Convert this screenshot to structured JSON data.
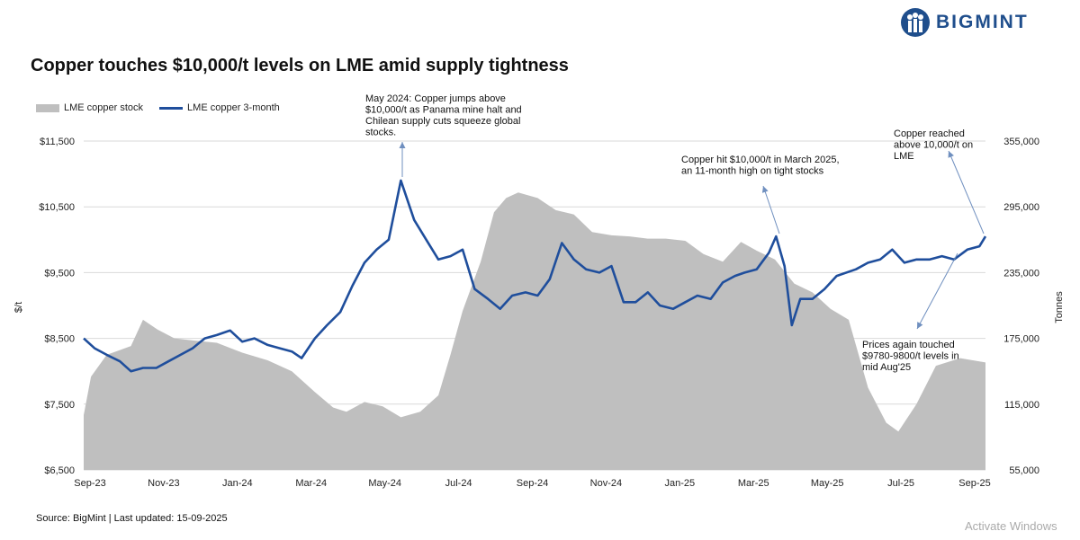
{
  "brand": {
    "name": "BIGMINT",
    "color": "#1f4e8c"
  },
  "title": "Copper touches $10,000/t levels on LME amid supply tightness",
  "source": "Source: BigMint | Last updated: 15-09-2025",
  "watermark": "Activate Windows",
  "chart_data": {
    "type": "line",
    "title": "Copper touches $10,000/t levels on LME amid supply tightness",
    "ylabel": "$/t",
    "y2label": "Tonnes",
    "ylim": [
      6500,
      11500
    ],
    "y2lim": [
      55000,
      355000
    ],
    "yticks": [
      "$11,500",
      "$10,500",
      "$9,500",
      "$8,500",
      "$7,500",
      "$6,500"
    ],
    "y2ticks": [
      "355,000",
      "295,000",
      "235,000",
      "175,000",
      "115,000",
      "55,000"
    ],
    "xticks": [
      "Sep-23",
      "Nov-23",
      "Jan-24",
      "Mar-24",
      "May-24",
      "Jul-24",
      "Sep-24",
      "Nov-24",
      "Jan-25",
      "Mar-25",
      "May-25",
      "Jul-25",
      "Sep-25"
    ],
    "legend_position": "top-left",
    "grid": true,
    "colors": {
      "price": "#1f4e9c",
      "stock": "#bfbfbf"
    },
    "series": [
      {
        "name": "LME copper stock",
        "type": "area",
        "axis": "right",
        "points": [
          [
            "2023-09-01",
            105000
          ],
          [
            "2023-09-07",
            140000
          ],
          [
            "2023-09-20",
            160000
          ],
          [
            "2023-10-10",
            168000
          ],
          [
            "2023-10-20",
            192000
          ],
          [
            "2023-11-01",
            183000
          ],
          [
            "2023-11-15",
            175000
          ],
          [
            "2023-12-01",
            173000
          ],
          [
            "2023-12-20",
            171000
          ],
          [
            "2024-01-10",
            162000
          ],
          [
            "2024-01-31",
            155000
          ],
          [
            "2024-02-20",
            145000
          ],
          [
            "2024-03-10",
            126000
          ],
          [
            "2024-03-25",
            112000
          ],
          [
            "2024-04-05",
            108000
          ],
          [
            "2024-04-20",
            117000
          ],
          [
            "2024-05-05",
            113000
          ],
          [
            "2024-05-20",
            103000
          ],
          [
            "2024-06-05",
            108000
          ],
          [
            "2024-06-20",
            123000
          ],
          [
            "2024-06-30",
            160000
          ],
          [
            "2024-07-10",
            200000
          ],
          [
            "2024-07-25",
            245000
          ],
          [
            "2024-08-05",
            290000
          ],
          [
            "2024-08-15",
            303000
          ],
          [
            "2024-08-25",
            308000
          ],
          [
            "2024-09-10",
            303000
          ],
          [
            "2024-09-25",
            292000
          ],
          [
            "2024-10-10",
            288000
          ],
          [
            "2024-10-25",
            272000
          ],
          [
            "2024-11-10",
            269000
          ],
          [
            "2024-11-25",
            268000
          ],
          [
            "2024-12-10",
            266000
          ],
          [
            "2024-12-25",
            266000
          ],
          [
            "2025-01-10",
            264000
          ],
          [
            "2025-01-25",
            252000
          ],
          [
            "2025-02-10",
            245000
          ],
          [
            "2025-02-25",
            263000
          ],
          [
            "2025-03-10",
            255000
          ],
          [
            "2025-03-25",
            247000
          ],
          [
            "2025-04-10",
            225000
          ],
          [
            "2025-04-25",
            217000
          ],
          [
            "2025-05-10",
            202000
          ],
          [
            "2025-05-25",
            192000
          ],
          [
            "2025-06-10",
            130000
          ],
          [
            "2025-06-25",
            98000
          ],
          [
            "2025-07-05",
            90000
          ],
          [
            "2025-07-20",
            115000
          ],
          [
            "2025-08-05",
            150000
          ],
          [
            "2025-08-25",
            157000
          ],
          [
            "2025-09-15",
            153000
          ]
        ]
      },
      {
        "name": "LME copper 3-month",
        "type": "line",
        "axis": "left",
        "points": [
          [
            "2023-09-01",
            8500
          ],
          [
            "2023-09-10",
            8350
          ],
          [
            "2023-09-20",
            8250
          ],
          [
            "2023-10-01",
            8150
          ],
          [
            "2023-10-10",
            8000
          ],
          [
            "2023-10-20",
            8050
          ],
          [
            "2023-10-31",
            8050
          ],
          [
            "2023-11-10",
            8150
          ],
          [
            "2023-11-20",
            8250
          ],
          [
            "2023-11-30",
            8350
          ],
          [
            "2023-12-10",
            8500
          ],
          [
            "2023-12-20",
            8550
          ],
          [
            "2023-12-31",
            8620
          ],
          [
            "2024-01-10",
            8450
          ],
          [
            "2024-01-20",
            8500
          ],
          [
            "2024-01-31",
            8400
          ],
          [
            "2024-02-10",
            8350
          ],
          [
            "2024-02-20",
            8300
          ],
          [
            "2024-02-28",
            8200
          ],
          [
            "2024-03-10",
            8500
          ],
          [
            "2024-03-20",
            8700
          ],
          [
            "2024-03-31",
            8900
          ],
          [
            "2024-04-10",
            9300
          ],
          [
            "2024-04-20",
            9650
          ],
          [
            "2024-04-30",
            9850
          ],
          [
            "2024-05-10",
            10000
          ],
          [
            "2024-05-20",
            10900
          ],
          [
            "2024-05-31",
            10300
          ],
          [
            "2024-06-10",
            10000
          ],
          [
            "2024-06-20",
            9700
          ],
          [
            "2024-06-30",
            9750
          ],
          [
            "2024-07-10",
            9850
          ],
          [
            "2024-07-20",
            9250
          ],
          [
            "2024-07-31",
            9100
          ],
          [
            "2024-08-10",
            8950
          ],
          [
            "2024-08-20",
            9150
          ],
          [
            "2024-08-31",
            9200
          ],
          [
            "2024-09-10",
            9150
          ],
          [
            "2024-09-20",
            9400
          ],
          [
            "2024-09-30",
            9950
          ],
          [
            "2024-10-10",
            9700
          ],
          [
            "2024-10-20",
            9550
          ],
          [
            "2024-10-31",
            9500
          ],
          [
            "2024-11-10",
            9600
          ],
          [
            "2024-11-20",
            9050
          ],
          [
            "2024-11-30",
            9050
          ],
          [
            "2024-12-10",
            9200
          ],
          [
            "2024-12-20",
            9000
          ],
          [
            "2024-12-31",
            8950
          ],
          [
            "2025-01-10",
            9050
          ],
          [
            "2025-01-20",
            9150
          ],
          [
            "2025-01-31",
            9100
          ],
          [
            "2025-02-10",
            9350
          ],
          [
            "2025-02-20",
            9450
          ],
          [
            "2025-02-28",
            9500
          ],
          [
            "2025-03-10",
            9550
          ],
          [
            "2025-03-20",
            9800
          ],
          [
            "2025-03-26",
            10050
          ],
          [
            "2025-04-02",
            9600
          ],
          [
            "2025-04-08",
            8700
          ],
          [
            "2025-04-15",
            9100
          ],
          [
            "2025-04-25",
            9100
          ],
          [
            "2025-05-05",
            9250
          ],
          [
            "2025-05-15",
            9450
          ],
          [
            "2025-05-31",
            9550
          ],
          [
            "2025-06-10",
            9650
          ],
          [
            "2025-06-20",
            9700
          ],
          [
            "2025-06-30",
            9850
          ],
          [
            "2025-07-10",
            9650
          ],
          [
            "2025-07-20",
            9700
          ],
          [
            "2025-07-31",
            9700
          ],
          [
            "2025-08-10",
            9750
          ],
          [
            "2025-08-20",
            9700
          ],
          [
            "2025-08-31",
            9850
          ],
          [
            "2025-09-10",
            9900
          ],
          [
            "2025-09-15",
            10050
          ]
        ]
      }
    ],
    "annotations": [
      {
        "lines": [
          "May 2024: Copper jumps above",
          "$10,000/t as Panama mine halt and",
          "Chilean supply cuts squeeze global",
          "stocks."
        ],
        "target": [
          "2024-05-20",
          10900
        ]
      },
      {
        "lines": [
          "Copper hit $10,000/t in March 2025,",
          "an 11-month high on tight stocks"
        ],
        "target": [
          "2025-03-26",
          10050
        ]
      },
      {
        "lines": [
          "Copper reached",
          "above 10,000/t on",
          "LME"
        ],
        "target": [
          "2025-09-15",
          10050
        ]
      },
      {
        "lines": [
          "Prices again touched",
          "$9780-9800/t levels in",
          "mid Aug'25"
        ],
        "target": [
          "2025-08-15",
          9750
        ]
      }
    ]
  }
}
